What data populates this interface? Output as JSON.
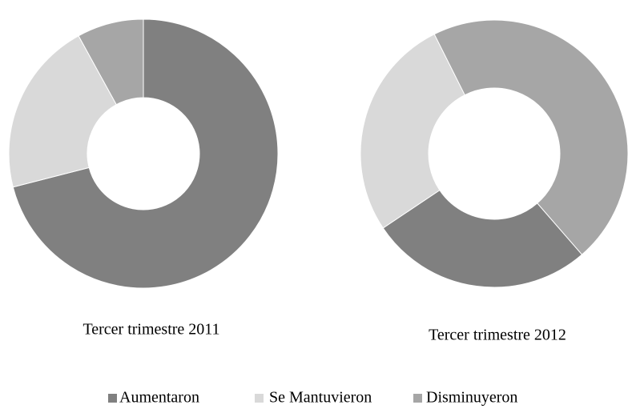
{
  "chart_data": [
    {
      "type": "donut",
      "title": "Tercer trimestre 2011",
      "categories": [
        "Aumentaron",
        "Se Mantuvieron",
        "Disminuyeron"
      ],
      "values": [
        71,
        21,
        8
      ],
      "colors": [
        "#808080",
        "#d9d9d9",
        "#a6a6a6"
      ]
    },
    {
      "type": "donut",
      "title": "Tercer trimestre 2012",
      "categories": [
        "Aumentaron",
        "Se Mantuvieron",
        "Disminuyeron"
      ],
      "values": [
        27,
        27,
        46
      ],
      "colors": [
        "#808080",
        "#d9d9d9",
        "#a6a6a6"
      ]
    }
  ]
}
